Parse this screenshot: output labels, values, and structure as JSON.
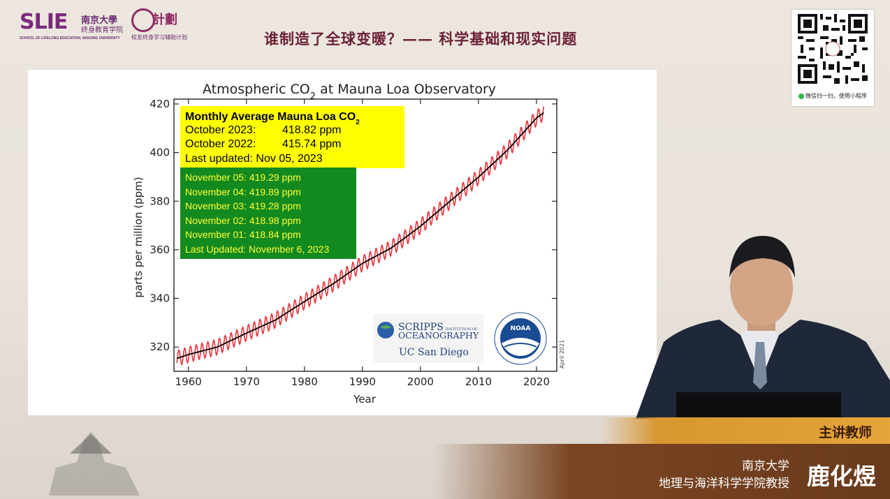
{
  "header": {
    "logo_main": "SLIE",
    "logo_cn_school": "南京大學",
    "logo_cn_sub": "终身教育学院",
    "logo_en": "SCHOOL OF LIFELONG EDUCATION, NANJING UNIVERSITY",
    "logo2_text": "計劃",
    "logo2_sub": "校友终身学习辅助计划",
    "title": "谁制造了全球变暖？—— 科学基础和现实问题"
  },
  "qr": {
    "caption": "微信扫一扫，使用小程序"
  },
  "chart_data": {
    "type": "line",
    "title": "Atmospheric CO",
    "title_sub": "2",
    "title_suffix": " at Mauna Loa Observatory",
    "xlabel": "Year",
    "ylabel": "parts per million (ppm)",
    "xlim": [
      1957.5,
      2023.5
    ],
    "ylim": [
      310,
      422
    ],
    "xticks": [
      1960,
      1970,
      1980,
      1990,
      2000,
      2010,
      2020
    ],
    "yticks": [
      320,
      340,
      360,
      380,
      400,
      420
    ],
    "grid": false,
    "side_note": "April 2021",
    "series": [
      {
        "style": "monthly, red",
        "color": "#e8333a",
        "seasonal_amplitude_ppm": 3.2,
        "x": [
          1958,
          1960,
          1965,
          1970,
          1975,
          1980,
          1985,
          1990,
          1995,
          2000,
          2005,
          2010,
          2015,
          2020,
          2021.3
        ],
        "y": [
          315.3,
          316.9,
          320.0,
          325.7,
          331.1,
          338.7,
          346.1,
          354.4,
          360.8,
          369.7,
          379.8,
          389.9,
          401.0,
          414.2,
          416.5
        ]
      },
      {
        "style": "trend, black",
        "color": "#000000",
        "x": [
          1958,
          1960,
          1965,
          1970,
          1975,
          1980,
          1985,
          1990,
          1995,
          2000,
          2005,
          2010,
          2015,
          2020,
          2021.3
        ],
        "y": [
          315.3,
          316.9,
          320.0,
          325.7,
          331.1,
          338.7,
          346.1,
          354.4,
          360.8,
          369.7,
          379.8,
          389.9,
          401.0,
          414.2,
          416.5
        ]
      }
    ],
    "yellow_box": {
      "heading": "Monthly Average Mauna Loa CO",
      "heading_sub": "2",
      "lines": [
        {
          "label": "October 2023:",
          "value": "418.82 ppm"
        },
        {
          "label": "October 2022:",
          "value": "415.74 ppm"
        },
        {
          "label": "Last updated: Nov 05, 2023",
          "value": ""
        }
      ],
      "color": "#ffff00"
    },
    "green_box": {
      "lines": [
        "November 05:  419.29 ppm",
        "November 04:  419.89 ppm",
        "November 03: 419.28 ppm",
        "November 02:  418.98 ppm",
        "November 01: 418.84 ppm",
        "Last Updated: November 6, 2023"
      ],
      "color": "#138a1f",
      "text_color": "#ffff33"
    },
    "logos": {
      "scripps_line1": "SCRIPPS",
      "scripps_small": "INSTITUTION OF",
      "scripps_line2": "OCEANOGRAPHY",
      "ucsd": "UC San Diego",
      "noaa": "NOAA"
    }
  },
  "banner": {
    "role": "主讲教师",
    "org": "南京大学",
    "dept": "地理与海洋科学学院教授",
    "name": "鹿化煜"
  }
}
